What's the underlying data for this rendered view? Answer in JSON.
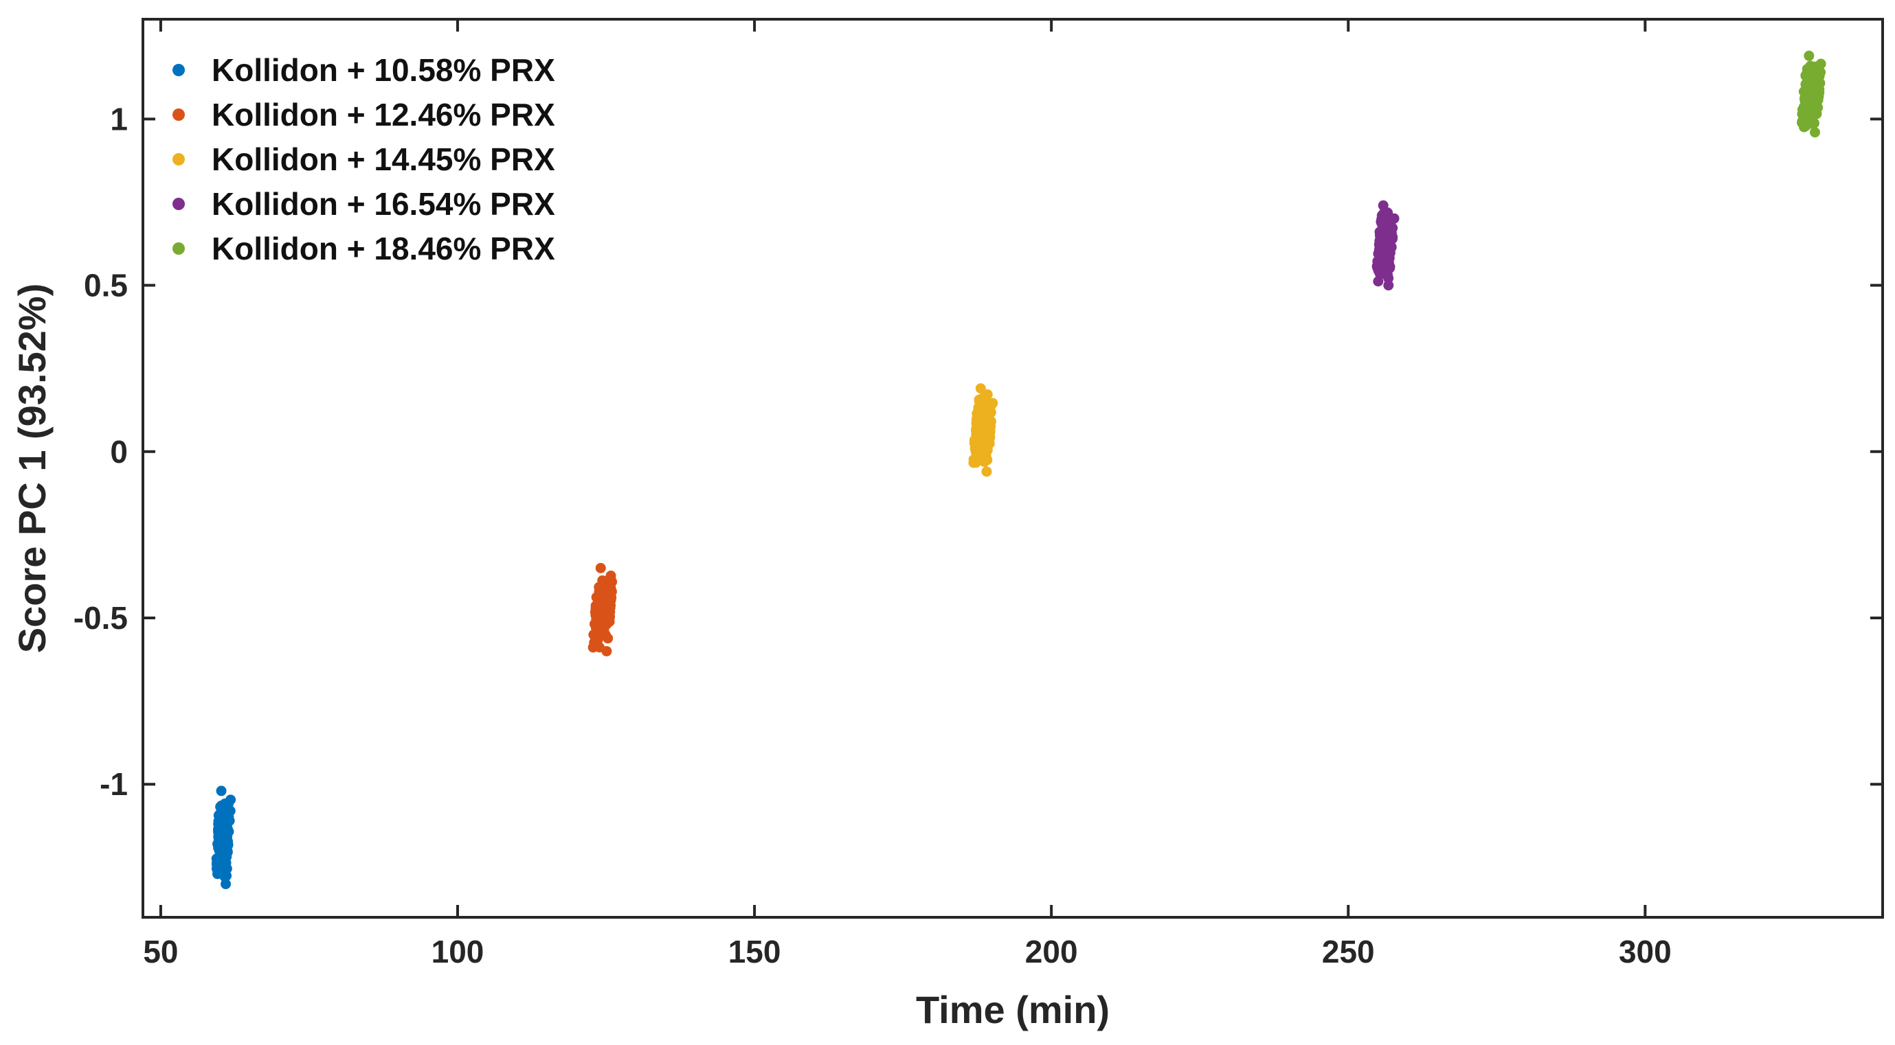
{
  "chart_data": {
    "type": "scatter",
    "xlabel": "Time (min)",
    "ylabel": "Score PC 1 (93.52%)",
    "xlim": [
      47,
      340
    ],
    "ylim": [
      -1.4,
      1.3
    ],
    "xticks": [
      50,
      100,
      150,
      200,
      250,
      300
    ],
    "yticks": [
      -1,
      -0.5,
      0,
      0.5,
      1
    ],
    "xtick_labels": [
      "50",
      "100",
      "150",
      "200",
      "250",
      "300"
    ],
    "ytick_labels": [
      "-1",
      "-0.5",
      "0",
      "0.5",
      "1"
    ],
    "grid": false,
    "legend_position": "top-left",
    "series": [
      {
        "name": "Kollidon + 10.58% PRX",
        "color": "#0072BD",
        "x_range": [
          59,
          62
        ],
        "y_range": [
          -1.3,
          -1.02
        ],
        "y_center": -1.16
      },
      {
        "name": "Kollidon + 12.46% PRX",
        "color": "#D95319",
        "x_range": [
          122.5,
          126.5
        ],
        "y_range": [
          -0.6,
          -0.35
        ],
        "y_center": -0.48
      },
      {
        "name": "Kollidon + 14.45% PRX",
        "color": "#EDB120",
        "x_range": [
          186.5,
          190.5
        ],
        "y_range": [
          -0.06,
          0.19
        ],
        "y_center": 0.05
      },
      {
        "name": "Kollidon + 16.54% PRX",
        "color": "#7E2F8E",
        "x_range": [
          254.5,
          258
        ],
        "y_range": [
          0.5,
          0.74
        ],
        "y_center": 0.6
      },
      {
        "name": "Kollidon + 18.46% PRX",
        "color": "#77AC30",
        "x_range": [
          326,
          330
        ],
        "y_range": [
          0.96,
          1.19
        ],
        "y_center": 1.05
      }
    ]
  }
}
